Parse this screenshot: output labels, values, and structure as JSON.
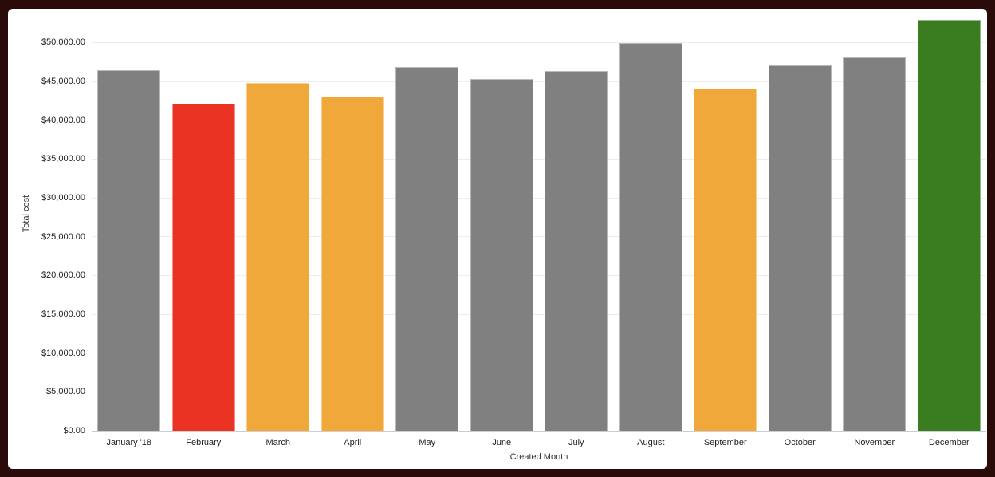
{
  "chart_data": {
    "type": "bar",
    "title": "",
    "xlabel": "Created Month",
    "ylabel": "Total cost",
    "categories": [
      "January '18",
      "February",
      "March",
      "April",
      "May",
      "June",
      "July",
      "August",
      "September",
      "October",
      "November",
      "December"
    ],
    "values": [
      46500,
      42100,
      44800,
      43100,
      46900,
      45300,
      46400,
      49900,
      44100,
      47100,
      48100,
      52900
    ],
    "bar_colors": [
      "#808080",
      "#EA3323",
      "#F0A83A",
      "#F0A83A",
      "#808080",
      "#808080",
      "#808080",
      "#808080",
      "#F0A83A",
      "#808080",
      "#808080",
      "#3A7D21"
    ],
    "palette": {
      "gray": "#808080",
      "red": "#EA3323",
      "orange": "#F0A83A",
      "green": "#3A7D21"
    },
    "y_ticks": [
      {
        "value": 0,
        "label": "$0.00"
      },
      {
        "value": 5000,
        "label": "$5,000.00"
      },
      {
        "value": 10000,
        "label": "$10,000.00"
      },
      {
        "value": 15000,
        "label": "$15,000.00"
      },
      {
        "value": 20000,
        "label": "$20,000.00"
      },
      {
        "value": 25000,
        "label": "$25,000.00"
      },
      {
        "value": 30000,
        "label": "$30,000.00"
      },
      {
        "value": 35000,
        "label": "$35,000.00"
      },
      {
        "value": 40000,
        "label": "$40,000.00"
      },
      {
        "value": 45000,
        "label": "$45,000.00"
      },
      {
        "value": 50000,
        "label": "$50,000.00"
      }
    ],
    "ylim": [
      0,
      53030
    ],
    "grid": true,
    "legend": "none",
    "colors": {
      "gridline": "#ededed",
      "zero_line": "#c9ced3",
      "tick_text": "#1f1f1f",
      "axis_title_text": "#333333",
      "frame": "#2B0A0A",
      "card": "#ffffff"
    }
  }
}
